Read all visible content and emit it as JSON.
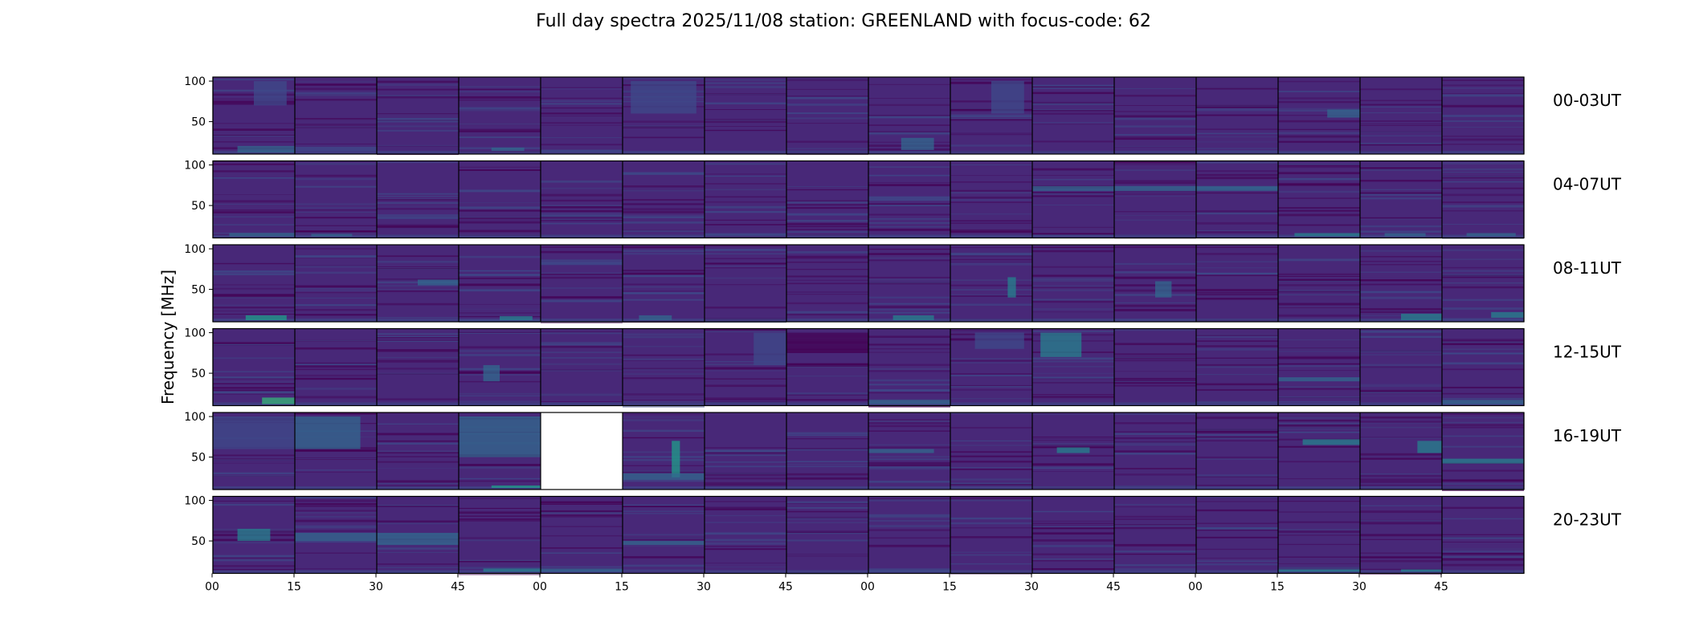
{
  "chart_data": {
    "type": "heatmap",
    "title": "Full day spectra 2025/11/08 station: GREENLAND with focus-code: 62",
    "ylabel": "Frequency [MHz]",
    "xlabel": "",
    "ylim": [
      10,
      105
    ],
    "y_ticks": [
      {
        "value": 100,
        "label": "100"
      },
      {
        "value": 50,
        "label": "50"
      }
    ],
    "x_tick_labels": [
      "00",
      "15",
      "30",
      "45",
      "00",
      "15",
      "30",
      "45",
      "00",
      "15",
      "30",
      "45",
      "00",
      "15",
      "30",
      "45"
    ],
    "panels_per_row": 16,
    "panel_minutes": 15,
    "colormap": [
      "#440154",
      "#482878",
      "#3e4a89",
      "#31688e",
      "#26828e",
      "#1f9e89",
      "#35b779"
    ],
    "rows": [
      {
        "label": "00-03UT",
        "features": [
          {
            "panel": 1,
            "fmin": 12,
            "fmax": 20,
            "t0": 0.3,
            "t1": 1,
            "level": 3
          },
          {
            "panel": 2,
            "fmin": 14,
            "fmax": 19,
            "t0": 0.0,
            "t1": 1,
            "level": 2
          },
          {
            "panel": 1,
            "fmin": 70,
            "fmax": 100,
            "t0": 0.5,
            "t1": 0.9,
            "level": 2
          },
          {
            "panel": 4,
            "fmin": 14,
            "fmax": 18,
            "t0": 0.4,
            "t1": 0.8,
            "level": 3
          },
          {
            "panel": 6,
            "fmin": 60,
            "fmax": 100,
            "t0": 0.1,
            "t1": 0.9,
            "level": 2
          },
          {
            "panel": 9,
            "fmin": 15,
            "fmax": 30,
            "t0": 0.4,
            "t1": 0.8,
            "level": 3
          },
          {
            "panel": 10,
            "fmin": 60,
            "fmax": 100,
            "t0": 0.5,
            "t1": 0.9,
            "level": 2
          },
          {
            "panel": 14,
            "fmin": 55,
            "fmax": 65,
            "t0": 0.6,
            "t1": 1,
            "level": 3
          }
        ]
      },
      {
        "label": "04-07UT",
        "features": [
          {
            "panel": 1,
            "fmin": 12,
            "fmax": 16,
            "t0": 0.2,
            "t1": 1,
            "level": 3
          },
          {
            "panel": 2,
            "fmin": 12,
            "fmax": 15,
            "t0": 0.2,
            "t1": 0.7,
            "level": 3
          },
          {
            "panel": 11,
            "fmin": 68,
            "fmax": 74,
            "t0": 0.0,
            "t1": 1,
            "level": 3
          },
          {
            "panel": 12,
            "fmin": 68,
            "fmax": 74,
            "t0": 0.0,
            "t1": 1,
            "level": 3
          },
          {
            "panel": 13,
            "fmin": 68,
            "fmax": 74,
            "t0": 0.0,
            "t1": 1,
            "level": 3
          },
          {
            "panel": 14,
            "fmin": 12,
            "fmax": 16,
            "t0": 0.2,
            "t1": 1,
            "level": 4
          },
          {
            "panel": 15,
            "fmin": 12,
            "fmax": 16,
            "t0": 0.3,
            "t1": 0.8,
            "level": 3
          },
          {
            "panel": 16,
            "fmin": 12,
            "fmax": 16,
            "t0": 0.3,
            "t1": 0.9,
            "level": 3
          }
        ]
      },
      {
        "label": "08-11UT",
        "features": [
          {
            "panel": 1,
            "fmin": 12,
            "fmax": 18,
            "t0": 0.4,
            "t1": 0.9,
            "level": 5
          },
          {
            "panel": 3,
            "fmin": 55,
            "fmax": 62,
            "t0": 0.5,
            "t1": 1,
            "level": 3
          },
          {
            "panel": 4,
            "fmin": 12,
            "fmax": 17,
            "t0": 0.5,
            "t1": 0.9,
            "level": 4
          },
          {
            "panel": 6,
            "fmin": 12,
            "fmax": 18,
            "t0": 0.2,
            "t1": 0.6,
            "level": 3
          },
          {
            "panel": 9,
            "fmin": 12,
            "fmax": 18,
            "t0": 0.3,
            "t1": 0.8,
            "level": 4
          },
          {
            "panel": 10,
            "fmin": 40,
            "fmax": 65,
            "t0": 0.7,
            "t1": 0.8,
            "level": 4
          },
          {
            "panel": 12,
            "fmin": 40,
            "fmax": 60,
            "t0": 0.5,
            "t1": 0.7,
            "level": 3
          },
          {
            "panel": 15,
            "fmin": 12,
            "fmax": 20,
            "t0": 0.5,
            "t1": 1,
            "level": 4
          },
          {
            "panel": 16,
            "fmin": 15,
            "fmax": 22,
            "t0": 0.6,
            "t1": 1,
            "level": 4
          }
        ]
      },
      {
        "label": "12-15UT",
        "features": [
          {
            "panel": 1,
            "fmin": 12,
            "fmax": 20,
            "t0": 0.6,
            "t1": 1,
            "level": 6
          },
          {
            "panel": 4,
            "fmin": 40,
            "fmax": 60,
            "t0": 0.3,
            "t1": 0.5,
            "level": 3
          },
          {
            "panel": 7,
            "fmin": 60,
            "fmax": 100,
            "t0": 0.6,
            "t1": 1,
            "level": 2
          },
          {
            "panel": 8,
            "fmin": 75,
            "fmax": 100,
            "t0": 0.0,
            "t1": 1,
            "level": 0
          },
          {
            "panel": 9,
            "fmin": 12,
            "fmax": 17,
            "t0": 0.0,
            "t1": 1,
            "level": 3
          },
          {
            "panel": 10,
            "fmin": 80,
            "fmax": 100,
            "t0": 0.3,
            "t1": 0.9,
            "level": 2
          },
          {
            "panel": 11,
            "fmin": 70,
            "fmax": 100,
            "t0": 0.1,
            "t1": 0.6,
            "level": 4
          },
          {
            "panel": 14,
            "fmin": 40,
            "fmax": 45,
            "t0": 0.0,
            "t1": 1,
            "level": 3
          },
          {
            "panel": 16,
            "fmin": 12,
            "fmax": 17,
            "t0": 0.0,
            "t1": 1,
            "level": 3
          }
        ]
      },
      {
        "label": "16-19UT",
        "features": [
          {
            "panel": 1,
            "fmin": 60,
            "fmax": 100,
            "t0": 0.0,
            "t1": 1,
            "level": 2
          },
          {
            "panel": 2,
            "fmin": 60,
            "fmax": 100,
            "t0": 0.0,
            "t1": 0.8,
            "level": 3
          },
          {
            "panel": 4,
            "fmin": 50,
            "fmax": 100,
            "t0": 0.0,
            "t1": 1,
            "level": 3
          },
          {
            "panel": 4,
            "fmin": 12,
            "fmax": 15,
            "t0": 0.4,
            "t1": 1,
            "level": 5
          },
          {
            "panel": 6,
            "fmin": 25,
            "fmax": 70,
            "t0": 0.6,
            "t1": 0.7,
            "level": 5
          },
          {
            "panel": 6,
            "fmin": 22,
            "fmax": 30,
            "t0": 0.0,
            "t1": 1,
            "level": 3
          },
          {
            "panel": 9,
            "fmin": 55,
            "fmax": 60,
            "t0": 0.0,
            "t1": 0.8,
            "level": 3
          },
          {
            "panel": 11,
            "fmin": 55,
            "fmax": 62,
            "t0": 0.3,
            "t1": 0.7,
            "level": 4
          },
          {
            "panel": 14,
            "fmin": 65,
            "fmax": 72,
            "t0": 0.3,
            "t1": 1,
            "level": 4
          },
          {
            "panel": 15,
            "fmin": 55,
            "fmax": 70,
            "t0": 0.7,
            "t1": 1,
            "level": 4
          },
          {
            "panel": 16,
            "fmin": 42,
            "fmax": 48,
            "t0": 0.0,
            "t1": 1,
            "level": 4
          }
        ]
      },
      {
        "label": "20-23UT",
        "features": [
          {
            "panel": 1,
            "fmin": 50,
            "fmax": 65,
            "t0": 0.3,
            "t1": 0.7,
            "level": 4
          },
          {
            "panel": 2,
            "fmin": 50,
            "fmax": 60,
            "t0": 0.0,
            "t1": 1,
            "level": 3
          },
          {
            "panel": 3,
            "fmin": 45,
            "fmax": 60,
            "t0": 0.0,
            "t1": 1,
            "level": 3
          },
          {
            "panel": 4,
            "fmin": 12,
            "fmax": 16,
            "t0": 0.3,
            "t1": 1,
            "level": 4
          },
          {
            "panel": 5,
            "fmin": 12,
            "fmax": 16,
            "t0": 0.0,
            "t1": 1,
            "level": 3
          },
          {
            "panel": 6,
            "fmin": 45,
            "fmax": 50,
            "t0": 0.0,
            "t1": 1,
            "level": 3
          },
          {
            "panel": 14,
            "fmin": 12,
            "fmax": 15,
            "t0": 0.0,
            "t1": 1,
            "level": 4
          },
          {
            "panel": 15,
            "fmin": 12,
            "fmax": 15,
            "t0": 0.5,
            "t1": 1,
            "level": 4
          }
        ]
      }
    ],
    "missing_panels": [
      {
        "row": "16-19UT",
        "panel": 5
      }
    ]
  }
}
